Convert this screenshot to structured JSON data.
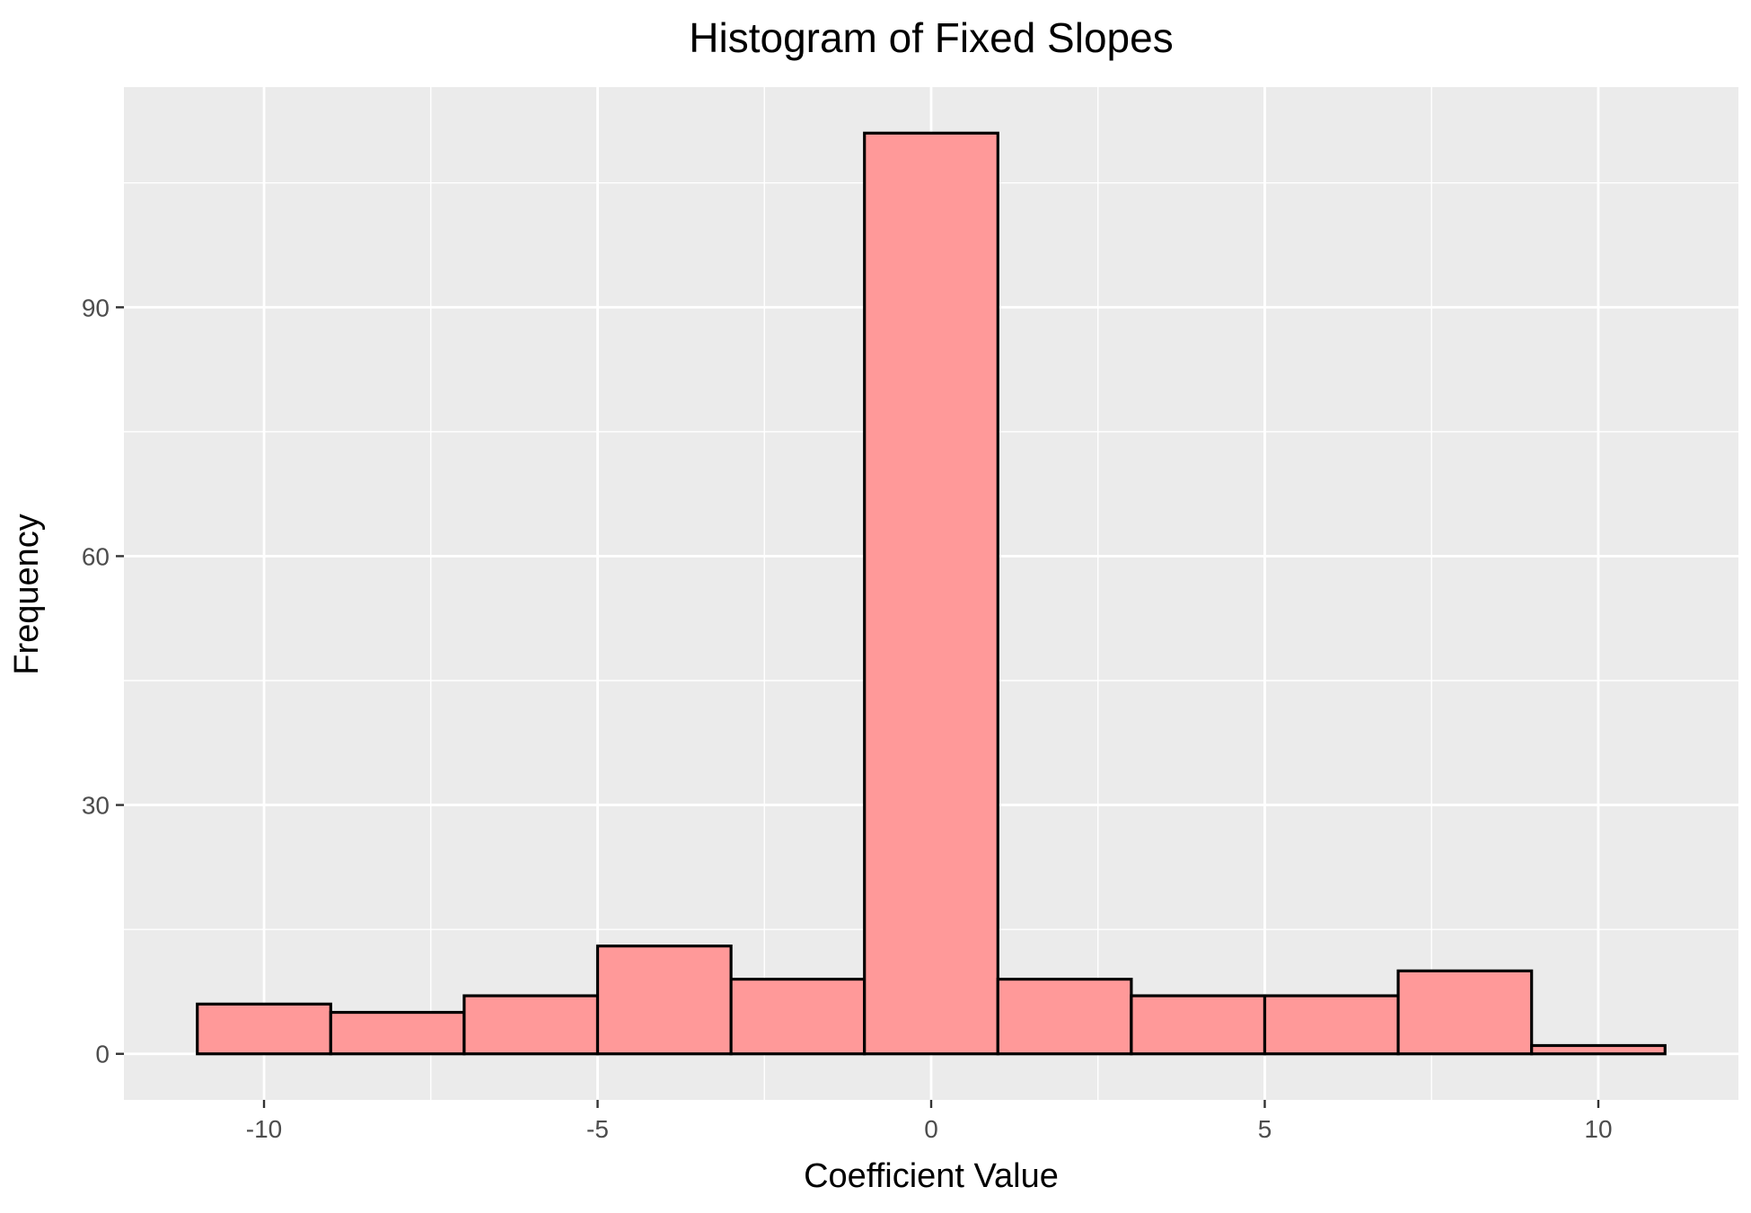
{
  "chart_data": {
    "type": "bar",
    "title": "Histogram of Fixed Slopes",
    "xlabel": "Coefficient Value",
    "ylabel": "Frequency",
    "bins": [
      {
        "x0": -11,
        "x1": -9,
        "count": 6
      },
      {
        "x0": -9,
        "x1": -7,
        "count": 5
      },
      {
        "x0": -7,
        "x1": -5,
        "count": 7
      },
      {
        "x0": -5,
        "x1": -3,
        "count": 13
      },
      {
        "x0": -3,
        "x1": -1,
        "count": 9
      },
      {
        "x0": -1,
        "x1": 1,
        "count": 111
      },
      {
        "x0": 1,
        "x1": 3,
        "count": 9
      },
      {
        "x0": 3,
        "x1": 5,
        "count": 7
      },
      {
        "x0": 5,
        "x1": 7,
        "count": 7
      },
      {
        "x0": 7,
        "x1": 9,
        "count": 10
      },
      {
        "x0": 9,
        "x1": 11,
        "count": 1
      }
    ],
    "xlim": [
      -12.1,
      12.1
    ],
    "ylim": [
      -5.55,
      116.55
    ],
    "x_ticks": [
      -10,
      -5,
      0,
      5,
      10
    ],
    "x_tick_labels": [
      "-10",
      "-5",
      "0",
      "5",
      "10"
    ],
    "y_ticks": [
      0,
      30,
      60,
      90
    ],
    "y_tick_labels": [
      "0",
      "30",
      "60",
      "90"
    ],
    "x_minor_ticks": [
      -7.5,
      -2.5,
      2.5,
      7.5
    ],
    "y_minor_ticks": [
      15,
      45,
      75,
      105
    ],
    "grid": true,
    "colors": {
      "panel_background": "#ebebeb",
      "grid_line": "#ffffff",
      "bar_fill": "#ff9999",
      "bar_outline": "#000000"
    }
  }
}
